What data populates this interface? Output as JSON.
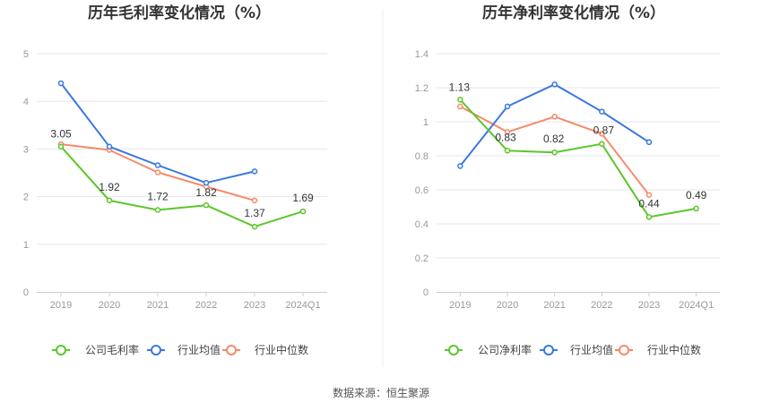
{
  "source_text": "数据来源：恒生聚源",
  "colors": {
    "company": "#5cc62a",
    "industry_avg": "#3a78e0",
    "industry_median": "#f58a68",
    "grid": "#e6e6ec",
    "axis": "#cccccc"
  },
  "chart_data": [
    {
      "type": "line",
      "title": "历年毛利率变化情况（%）",
      "categories": [
        "2019",
        "2020",
        "2021",
        "2022",
        "2023",
        "2024Q1"
      ],
      "ylim": [
        0,
        5
      ],
      "yticks": [
        "0",
        "1",
        "2",
        "3",
        "4",
        "5"
      ],
      "ytick_values": [
        0,
        1,
        2,
        3,
        4,
        5
      ],
      "series": [
        {
          "key": "company",
          "name": "公司毛利率",
          "values": [
            3.05,
            1.92,
            1.72,
            1.82,
            1.37,
            1.69
          ],
          "labels": [
            "3.05",
            "1.92",
            "1.72",
            "1.82",
            "1.37",
            "1.69"
          ]
        },
        {
          "key": "industry_avg",
          "name": "行业均值",
          "values": [
            4.38,
            3.05,
            2.66,
            2.29,
            2.53,
            null
          ]
        },
        {
          "key": "industry_median",
          "name": "行业中位数",
          "values": [
            3.1,
            2.98,
            2.51,
            2.21,
            1.92,
            null
          ]
        }
      ]
    },
    {
      "type": "line",
      "title": "历年净利率变化情况（%）",
      "categories": [
        "2019",
        "2020",
        "2021",
        "2022",
        "2023",
        "2024Q1"
      ],
      "ylim": [
        0,
        1.4
      ],
      "yticks": [
        "0",
        "0.2",
        "0.4",
        "0.6",
        "0.8",
        "1",
        "1.2",
        "1.4"
      ],
      "ytick_values": [
        0,
        0.2,
        0.4,
        0.6,
        0.8,
        1.0,
        1.2,
        1.4
      ],
      "series": [
        {
          "key": "company",
          "name": "公司净利率",
          "values": [
            1.13,
            0.83,
            0.82,
            0.87,
            0.44,
            0.49
          ],
          "labels": [
            "1.13",
            "0.83",
            "0.82",
            "0.87",
            "0.44",
            "0.49"
          ]
        },
        {
          "key": "industry_avg",
          "name": "行业均值",
          "values": [
            0.74,
            1.09,
            1.22,
            1.06,
            0.88,
            null
          ]
        },
        {
          "key": "industry_median",
          "name": "行业中位数",
          "values": [
            1.09,
            0.94,
            1.03,
            0.93,
            0.57,
            null
          ]
        }
      ]
    }
  ]
}
